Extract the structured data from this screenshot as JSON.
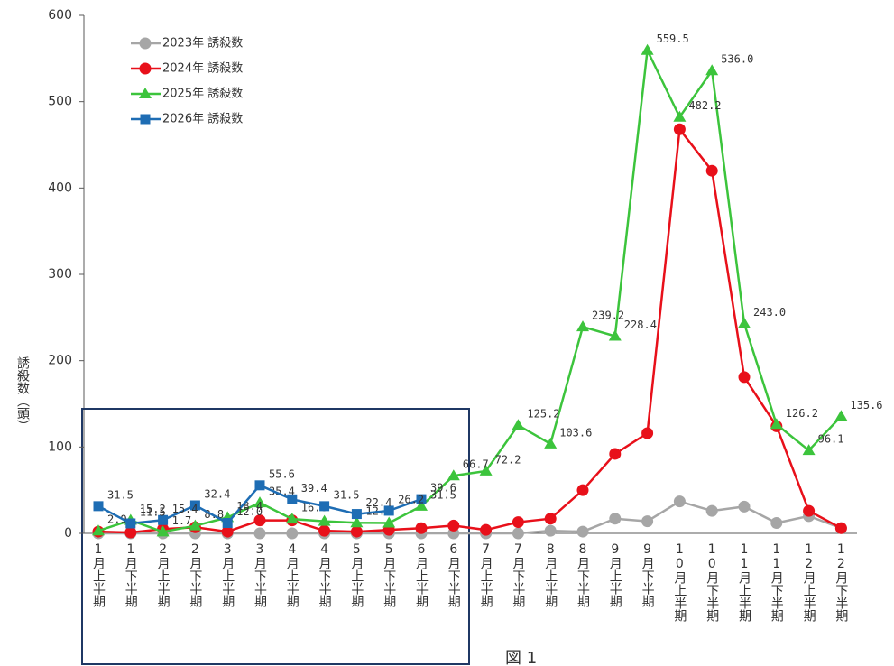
{
  "chart_data": {
    "type": "line",
    "y_label": "誘殺数（頭）",
    "caption": "図 1",
    "categories": [
      "1月上半期",
      "1月下半期",
      "2月上半期",
      "2月下半期",
      "3月上半期",
      "3月下半期",
      "4月上半期",
      "4月下半期",
      "5月上半期",
      "5月下半期",
      "6月上半期",
      "6月下半期",
      "7月上半期",
      "7月下半期",
      "8月上半期",
      "8月下半期",
      "9月上半期",
      "9月下半期",
      "10月上半期",
      "10月下半期",
      "11月上半期",
      "11月下半期",
      "12月上半期",
      "12月下半期"
    ],
    "ylim": [
      0,
      600
    ],
    "yticks": [
      0,
      100,
      200,
      300,
      400,
      500,
      600
    ],
    "series": [
      {
        "name": "2023年 誘殺数",
        "color": "#a6a6a6",
        "marker": "circle",
        "values": [
          0,
          0,
          0,
          0,
          0,
          0,
          0,
          0,
          0,
          0,
          0,
          0,
          0,
          0,
          3,
          2,
          17,
          14,
          37,
          26,
          31,
          12,
          20,
          6
        ]
      },
      {
        "name": "2024年 誘殺数",
        "color": "#e8101a",
        "marker": "circle",
        "values": [
          2,
          1,
          5,
          7,
          2,
          15,
          15,
          3,
          2,
          4,
          6,
          9,
          4,
          13,
          17,
          50,
          92,
          116,
          468,
          420,
          181,
          124,
          26,
          6
        ]
      },
      {
        "name": "2025年 誘殺数",
        "color": "#3cc43c",
        "marker": "triangle",
        "values": [
          2.9,
          15.2,
          1.7,
          8.8,
          18.4,
          35.4,
          16.6,
          14,
          12.3,
          12,
          31.5,
          66.7,
          72.2,
          125.2,
          103.6,
          239.2,
          228.4,
          559.5,
          482.2,
          536.0,
          243.0,
          126.2,
          96.1,
          135.6
        ],
        "value_labels": [
          "2.9",
          "15.2",
          "1.7",
          "8.8",
          "18.4",
          "35.4",
          "16.6",
          null,
          "12.3",
          null,
          "31.5",
          "66.7",
          "72.2",
          "125.2",
          "103.6",
          "239.2",
          "228.4",
          "559.5",
          "482.2",
          "536.0",
          "243.0",
          "126.2",
          "96.1",
          "135.6"
        ]
      },
      {
        "name": "2026年 誘殺数",
        "color": "#1e6db4",
        "marker": "square",
        "values": [
          31.5,
          11.5,
          15.4,
          32.4,
          12.0,
          55.6,
          39.4,
          31.5,
          22.4,
          26.2,
          39.6,
          null,
          null,
          null,
          null,
          null,
          null,
          null,
          null,
          null,
          null,
          null,
          null,
          null
        ],
        "value_labels": [
          "31.5",
          "11.5",
          "15.4",
          "32.4",
          "12.0",
          "55.6",
          "39.4",
          "31.5",
          "22.4",
          "26.2",
          "39.6",
          null,
          null,
          null,
          null,
          null,
          null,
          null,
          null,
          null,
          null,
          null,
          null,
          null
        ]
      }
    ]
  }
}
